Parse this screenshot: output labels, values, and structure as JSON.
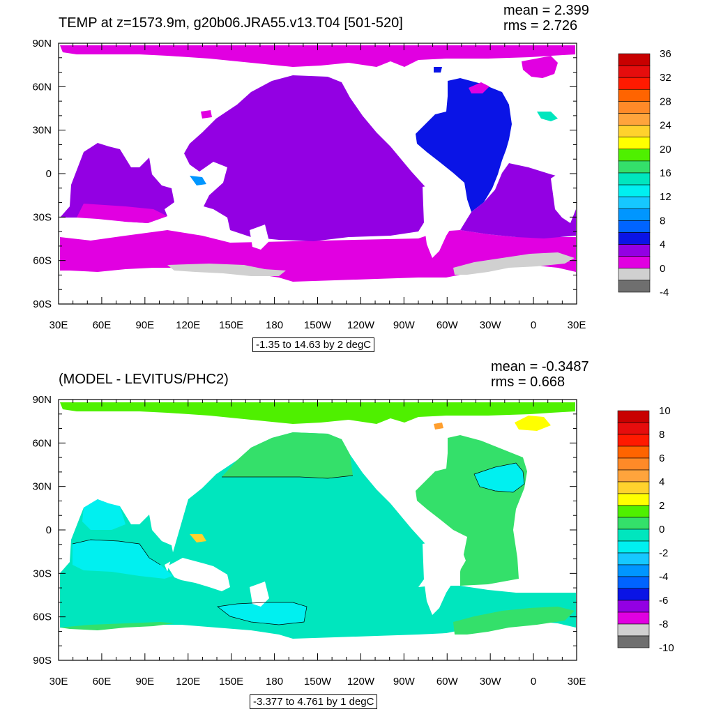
{
  "colors": {
    "land": "#ffffff",
    "purple": "#9300e3",
    "magenta": "#e100e1",
    "blue": "#0a14e6",
    "lightgray": "#d0d0d0",
    "darkgray": "#6f6f6f",
    "aquamarine": "#00e6be",
    "cyan": "#00f0f0",
    "green": "#4ff000",
    "midgreen": "#34e06a",
    "yellow": "#ffff00",
    "orange": "#ff9f2e",
    "gold": "#ffd22d"
  },
  "panels": [
    {
      "title": "TEMP at z=1573.9m, g20b06.JRA55.v13.T04 [501-520]",
      "mean_text": "mean = 2.399",
      "rms_text": "rms = 2.726",
      "range_text": "-1.35 to 14.63 by 2 degC",
      "y_ticks": [
        "90N",
        "60N",
        "30N",
        "0",
        "30S",
        "60S",
        "90S"
      ],
      "x_ticks": [
        "30E",
        "60E",
        "90E",
        "120E",
        "150E",
        "180",
        "150W",
        "120W",
        "90W",
        "60W",
        "30W",
        "0",
        "30E"
      ],
      "colorbar": {
        "labels": [
          "36",
          "32",
          "28",
          "24",
          "20",
          "16",
          "12",
          "8",
          "4",
          "0",
          "-4"
        ],
        "colors": [
          "#c80000",
          "#e60d0d",
          "#ff1a00",
          "#ff6400",
          "#ff8a28",
          "#ffa43c",
          "#ffd22d",
          "#ffff00",
          "#4ff000",
          "#34e06a",
          "#00e6be",
          "#00f0f0",
          "#16c8ff",
          "#0096ff",
          "#0064ff",
          "#0a14e6",
          "#9300e3",
          "#e100e1",
          "#d0d0d0",
          "#6f6f6f"
        ]
      }
    },
    {
      "title": "(MODEL - LEVITUS/PHC2)",
      "mean_text": "mean = -0.3487",
      "rms_text": "rms = 0.668",
      "range_text": "-3.377 to 4.761 by 1 degC",
      "y_ticks": [
        "90N",
        "60N",
        "30N",
        "0",
        "30S",
        "60S",
        "90S"
      ],
      "x_ticks": [
        "30E",
        "60E",
        "90E",
        "120E",
        "150E",
        "180",
        "150W",
        "120W",
        "90W",
        "60W",
        "30W",
        "0",
        "30E"
      ],
      "colorbar": {
        "labels": [
          "10",
          "8",
          "6",
          "4",
          "2",
          "0",
          "-2",
          "-4",
          "-6",
          "-8",
          "-10"
        ],
        "colors": [
          "#c80000",
          "#e60d0d",
          "#ff1a00",
          "#ff6400",
          "#ff8a28",
          "#ffa43c",
          "#ffd22d",
          "#ffff00",
          "#4ff000",
          "#34e06a",
          "#00e6be",
          "#00f0f0",
          "#16c8ff",
          "#0096ff",
          "#0064ff",
          "#0a14e6",
          "#9300e3",
          "#e100e1",
          "#d0d0d0",
          "#6f6f6f"
        ]
      }
    }
  ]
}
